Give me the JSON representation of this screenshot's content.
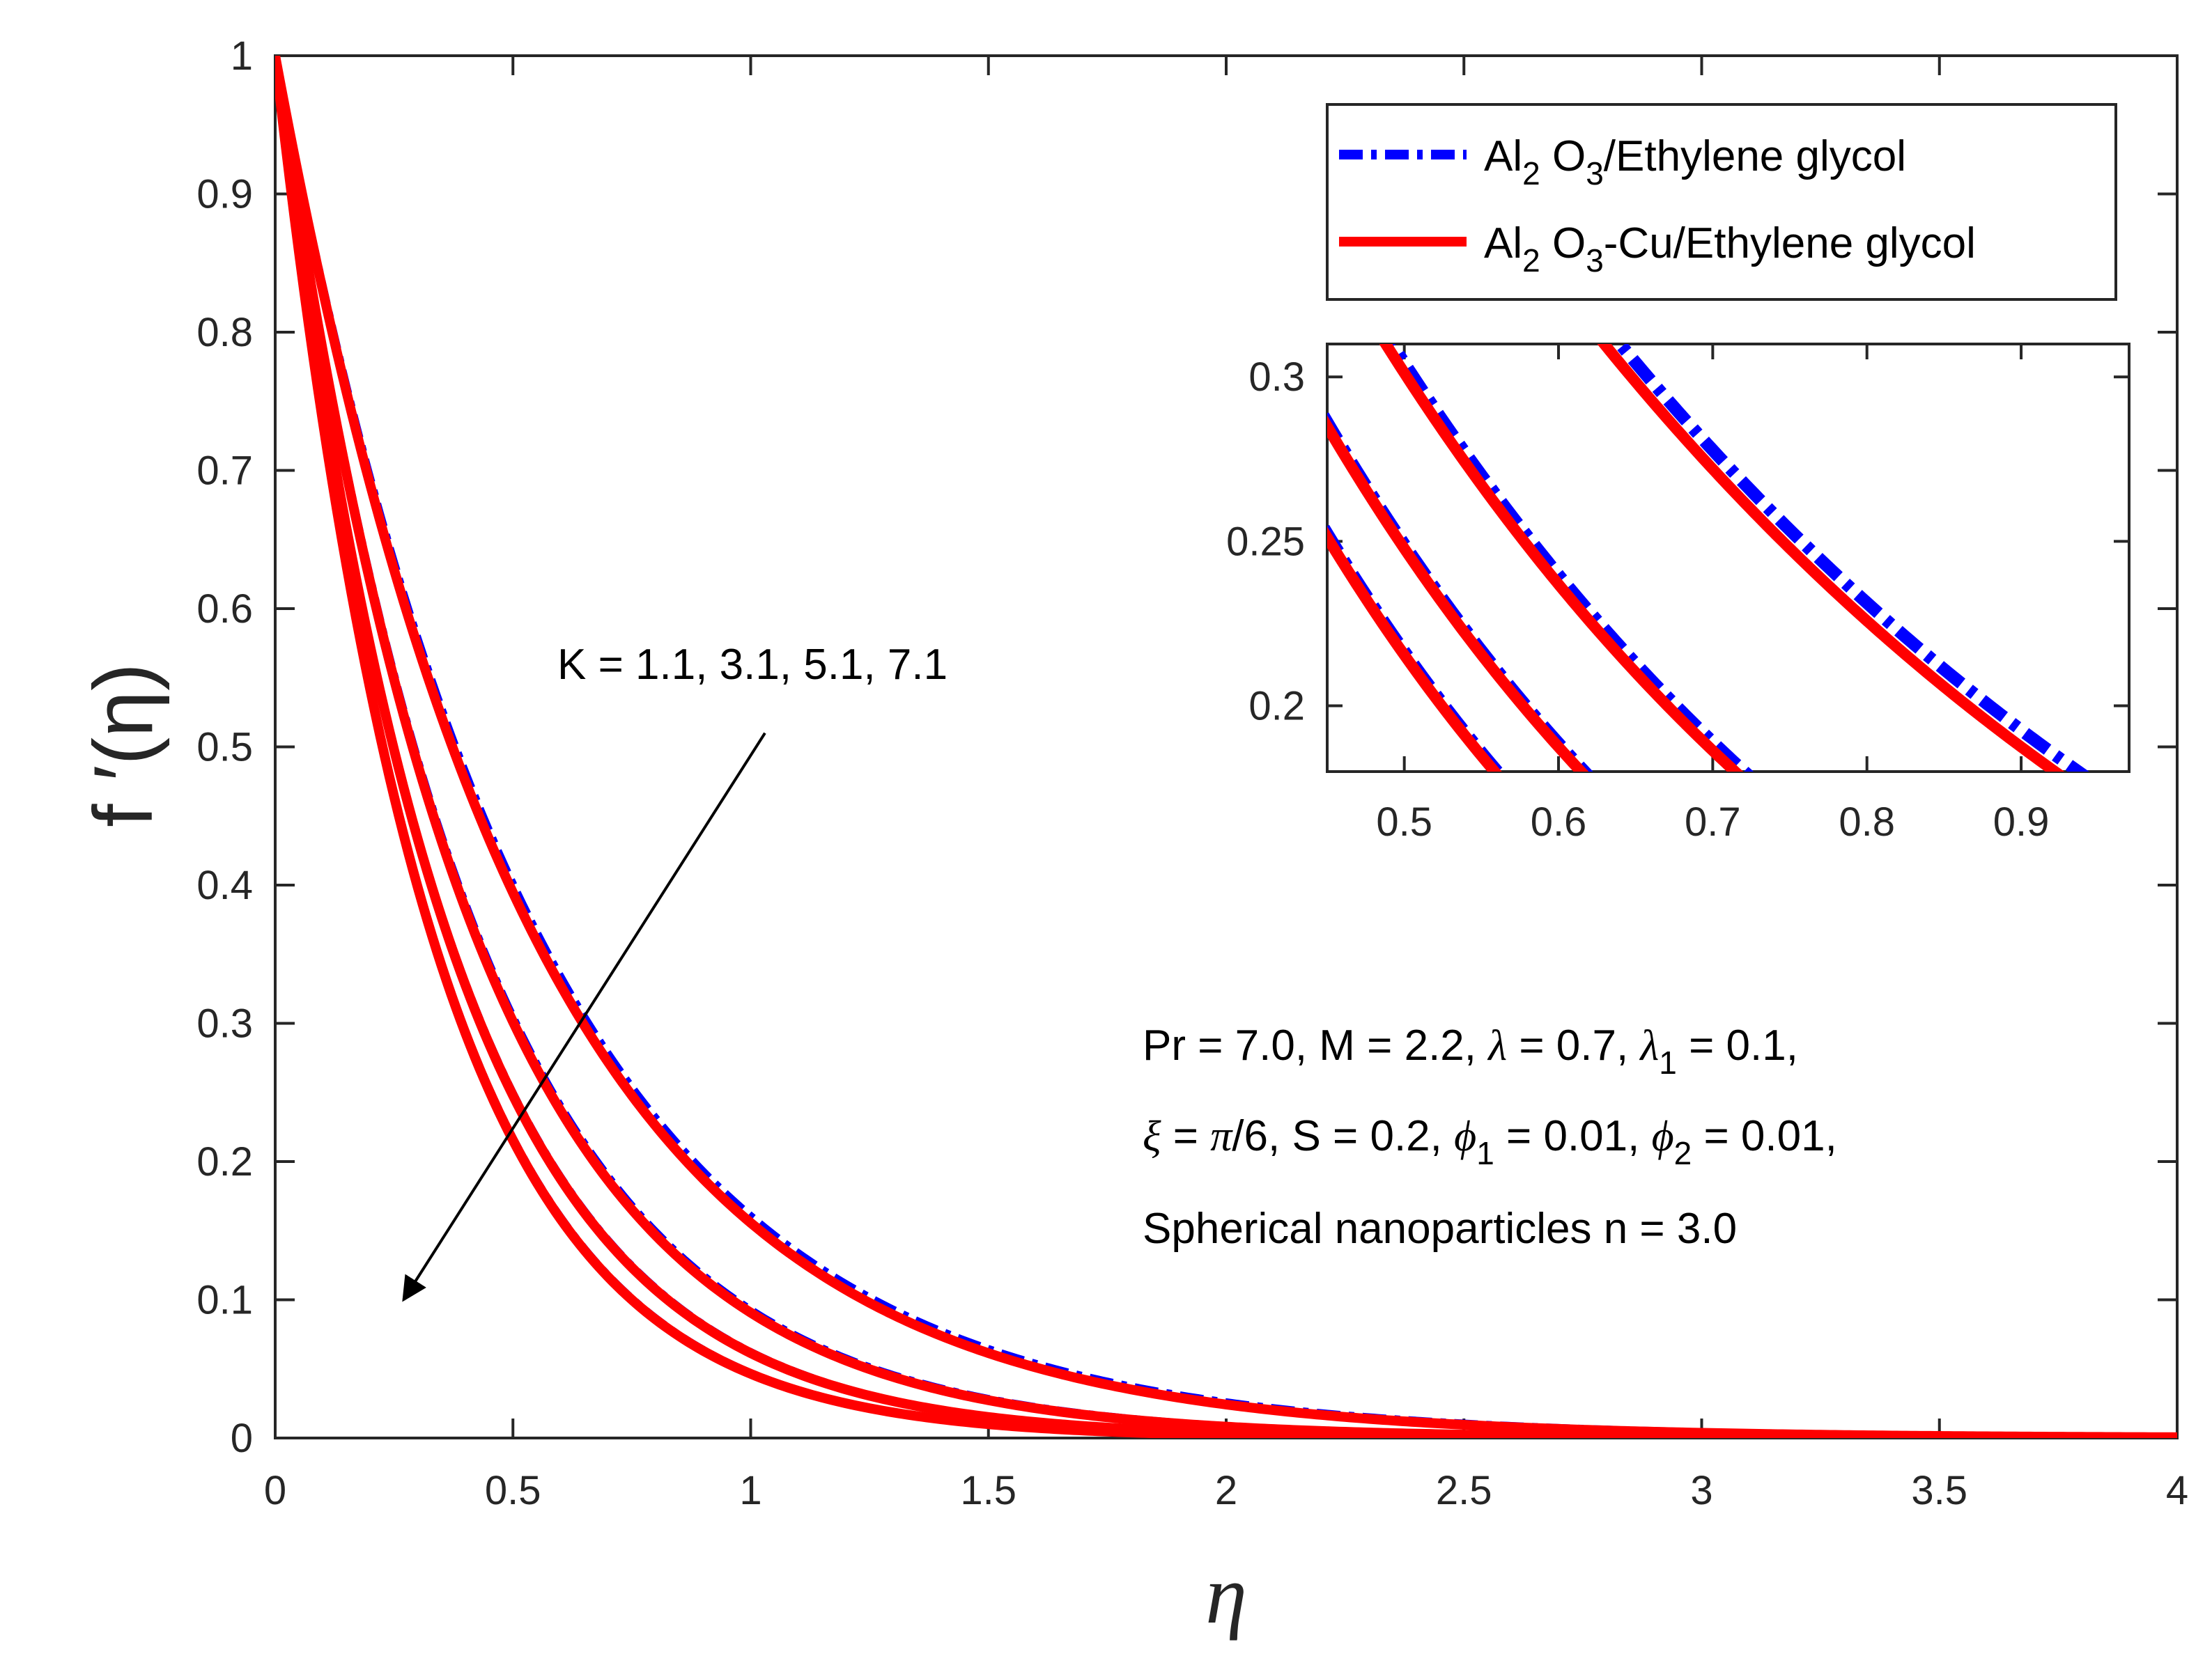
{
  "chart_data": {
    "type": "line",
    "title": "",
    "xlabel": "η",
    "ylabel": "f ′(η)",
    "xlim": [
      0,
      4
    ],
    "ylim": [
      0,
      1
    ],
    "xticks": [
      "0",
      "0.5",
      "1",
      "1.5",
      "2",
      "2.5",
      "3",
      "3.5",
      "4"
    ],
    "yticks": [
      "0",
      "0.1",
      "0.2",
      "0.3",
      "0.4",
      "0.5",
      "0.6",
      "0.7",
      "0.8",
      "0.9",
      "1"
    ],
    "legend": {
      "position": "top-right",
      "entries": [
        {
          "prefix": "Al",
          "sub1": "2",
          "mid": " O",
          "sub2": "3",
          "suffix": "/Ethylene glycol",
          "color": "#0000ff",
          "style": "dash-dot"
        },
        {
          "prefix": "Al",
          "sub1": "2",
          "mid": " O",
          "sub2": "3",
          "suffix": "-Cu/Ethylene glycol",
          "color": "#ff0000",
          "style": "solid"
        }
      ]
    },
    "annotation": {
      "k_text": "K = 1.1, 3.1, 5.1, 7.1",
      "arrow_from": [
        1.03,
        0.51
      ],
      "arrow_to": [
        0.27,
        0.1
      ],
      "params_line1": [
        {
          "t": "Pr = 7.0, M = 2.2, "
        },
        {
          "t": "λ",
          "i": true
        },
        {
          "t": " = 0.7, "
        },
        {
          "t": "λ",
          "i": true
        },
        {
          "t": "1",
          "sub": true
        },
        {
          "t": " = 0.1,"
        }
      ],
      "params_line2": [
        {
          "t": "ξ",
          "i": true
        },
        {
          "t": " = "
        },
        {
          "t": "π",
          "i": true
        },
        {
          "t": "/6, S = 0.2, "
        },
        {
          "t": "ϕ",
          "i": true
        },
        {
          "t": "1",
          "sub": true
        },
        {
          "t": " = 0.01, "
        },
        {
          "t": "ϕ",
          "i": true
        },
        {
          "t": "2",
          "sub": true
        },
        {
          "t": " = 0.01,"
        }
      ],
      "params_line3": [
        {
          "t": "Spherical nanoparticles n = 3.0"
        }
      ]
    },
    "series": [
      {
        "name": "Al2O3/Ethylene glycol, K = 1.1",
        "color": "#0000ff",
        "style": "dash-dot",
        "decay": 1.83
      },
      {
        "name": "Al2O3-Cu/Ethylene glycol, K = 1.1",
        "color": "#ff0000",
        "style": "solid",
        "decay": 1.86
      },
      {
        "name": "Al2O3/Ethylene glycol, K = 3.1",
        "color": "#0000ff",
        "style": "dash-dot",
        "decay": 2.38
      },
      {
        "name": "Al2O3-Cu/Ethylene glycol, K = 3.1",
        "color": "#ff0000",
        "style": "solid",
        "decay": 2.4
      },
      {
        "name": "Al2O3/Ethylene glycol, K = 5.1",
        "color": "#0000ff",
        "style": "dash-dot",
        "decay": 2.78
      },
      {
        "name": "Al2O3-Cu/Ethylene glycol, K = 5.1",
        "color": "#ff0000",
        "style": "solid",
        "decay": 2.79
      },
      {
        "name": "Al2O3/Ethylene glycol, K = 7.1",
        "color": "#0000ff",
        "style": "dash-dot",
        "decay": 3.06
      },
      {
        "name": "Al2O3-Cu/Ethylene glycol, K = 7.1",
        "color": "#ff0000",
        "style": "solid",
        "decay": 3.07
      }
    ],
    "inset": {
      "xlim": [
        0.45,
        0.97
      ],
      "ylim": [
        0.18,
        0.31
      ],
      "xticks": [
        "0.5",
        "0.6",
        "0.7",
        "0.8",
        "0.9"
      ],
      "yticks": [
        "0.2",
        "0.25",
        "0.3"
      ]
    }
  }
}
